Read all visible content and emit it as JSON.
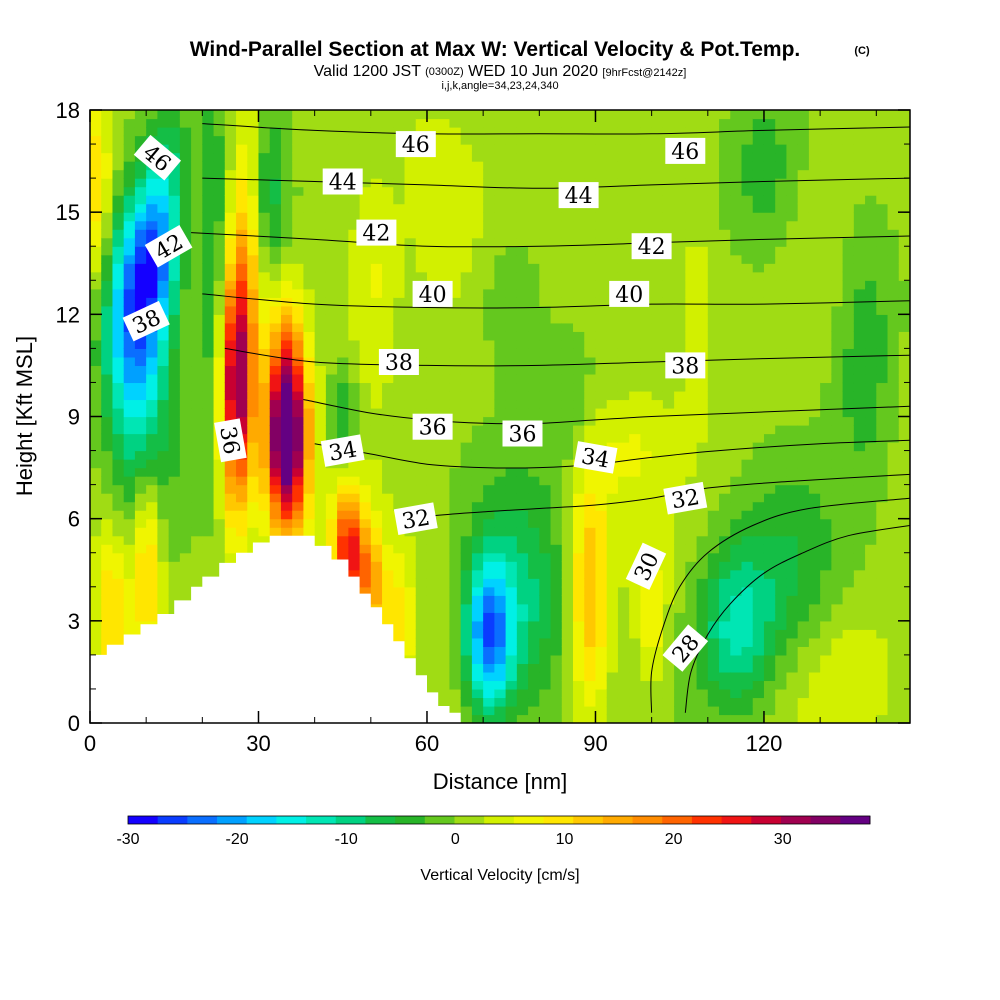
{
  "title": {
    "main": "Wind-Parallel Section at Max W: Vertical Velocity & Pot.Temp.",
    "copyright": "(C)",
    "valid_prefix": "Valid 1200 JST",
    "valid_zulu": "(0300Z)",
    "valid_date": "WED 10 Jun 2020",
    "forecast": "[9hrFcst@2142z]",
    "indices": "i,j,k,angle=34,23,24,340"
  },
  "chart_data": {
    "type": "heatmap",
    "xlabel": "Distance [nm]",
    "ylabel": "Height [Kft MSL]",
    "xlim": [
      0,
      146
    ],
    "ylim": [
      0,
      18
    ],
    "x_ticks": [
      0,
      30,
      60,
      90,
      120
    ],
    "y_ticks": [
      0,
      3,
      6,
      9,
      12,
      15,
      18
    ],
    "x_minor_step": 10,
    "y_minor_step": 1,
    "grid": false,
    "colorbar": {
      "label": "Vertical Velocity [cm/s]",
      "min": -30,
      "max": 38,
      "ticks": [
        -30,
        -20,
        -10,
        0,
        10,
        20,
        30
      ],
      "colors": [
        "#1400ff",
        "#0a3cff",
        "#0a6eff",
        "#00a0ff",
        "#00d2ff",
        "#00f0e6",
        "#00e6b4",
        "#00d282",
        "#14be46",
        "#28b428",
        "#64c81e",
        "#a0dc14",
        "#d2f000",
        "#f0f500",
        "#ffe600",
        "#ffc800",
        "#ffaa00",
        "#ff8c00",
        "#ff6400",
        "#ff3200",
        "#f01414",
        "#c80032",
        "#a00050",
        "#820064",
        "#640082"
      ]
    },
    "terrain_outline": [
      [
        0,
        0
      ],
      [
        0,
        2
      ],
      [
        3,
        2
      ],
      [
        3,
        2.3
      ],
      [
        6,
        2.3
      ],
      [
        6,
        2.6
      ],
      [
        9,
        2.6
      ],
      [
        9,
        2.9
      ],
      [
        12,
        2.9
      ],
      [
        12,
        3.2
      ],
      [
        15,
        3.2
      ],
      [
        15,
        3.6
      ],
      [
        18,
        3.6
      ],
      [
        18,
        4.0
      ],
      [
        20,
        4.0
      ],
      [
        20,
        4.3
      ],
      [
        23,
        4.3
      ],
      [
        23,
        4.7
      ],
      [
        26,
        4.7
      ],
      [
        26,
        5.0
      ],
      [
        29,
        5.0
      ],
      [
        29,
        5.3
      ],
      [
        32,
        5.3
      ],
      [
        32,
        5.5
      ],
      [
        40,
        5.5
      ],
      [
        40,
        5.2
      ],
      [
        43,
        5.2
      ],
      [
        43,
        4.8
      ],
      [
        46,
        4.8
      ],
      [
        46,
        4.3
      ],
      [
        48,
        4.3
      ],
      [
        48,
        3.8
      ],
      [
        50,
        3.8
      ],
      [
        50,
        3.4
      ],
      [
        52,
        3.4
      ],
      [
        52,
        2.9
      ],
      [
        54,
        2.9
      ],
      [
        54,
        2.4
      ],
      [
        56,
        2.4
      ],
      [
        56,
        1.9
      ],
      [
        58,
        1.9
      ],
      [
        58,
        1.4
      ],
      [
        60,
        1.4
      ],
      [
        60,
        0.9
      ],
      [
        62,
        0.9
      ],
      [
        62,
        0.5
      ],
      [
        64,
        0.5
      ],
      [
        64,
        0.3
      ],
      [
        66,
        0.3
      ],
      [
        66,
        0
      ]
    ],
    "wind_features": [
      {
        "x": 8,
        "y": 12.0,
        "sx": 4,
        "sy": 2.2,
        "w": -25
      },
      {
        "x": 12,
        "y": 14.0,
        "sx": 3,
        "sy": 1.5,
        "w": -18
      },
      {
        "x": 14,
        "y": 16.5,
        "sx": 3,
        "sy": 1.2,
        "w": -8
      },
      {
        "x": 9,
        "y": 7.5,
        "sx": 4,
        "sy": 2.5,
        "w": -8
      },
      {
        "x": 26,
        "y": 9.8,
        "sx": 2.0,
        "sy": 2.5,
        "w": 30
      },
      {
        "x": 35,
        "y": 8.2,
        "sx": 2.5,
        "sy": 1.8,
        "w": 36
      },
      {
        "x": 35,
        "y": 10.5,
        "sx": 2.5,
        "sy": 2.0,
        "w": 12
      },
      {
        "x": 28,
        "y": 13.5,
        "sx": 2.0,
        "sy": 3.0,
        "w": 10
      },
      {
        "x": 22,
        "y": 13.5,
        "sx": 2.0,
        "sy": 4.0,
        "w": -8
      },
      {
        "x": 32,
        "y": 15.5,
        "sx": 2.5,
        "sy": 2.0,
        "w": -8
      },
      {
        "x": 10,
        "y": 5.0,
        "sx": 2.0,
        "sy": 2.0,
        "w": 14
      },
      {
        "x": 4,
        "y": 3.5,
        "sx": 2.0,
        "sy": 2.0,
        "w": 10
      },
      {
        "x": 46,
        "y": 5.0,
        "sx": 2.0,
        "sy": 1.2,
        "w": 24
      },
      {
        "x": 50,
        "y": 4.0,
        "sx": 1.8,
        "sy": 1.2,
        "w": 14
      },
      {
        "x": 55,
        "y": 3.0,
        "sx": 2.0,
        "sy": 1.5,
        "w": 8
      },
      {
        "x": 71,
        "y": 2.5,
        "sx": 3.0,
        "sy": 1.6,
        "w": -22
      },
      {
        "x": 77,
        "y": 3.5,
        "sx": 6.0,
        "sy": 2.5,
        "w": -10
      },
      {
        "x": 89,
        "y": 3.8,
        "sx": 2.5,
        "sy": 2.5,
        "w": 13
      },
      {
        "x": 100,
        "y": 3.0,
        "sx": 2.0,
        "sy": 1.5,
        "w": 6
      },
      {
        "x": 115,
        "y": 2.8,
        "sx": 5.0,
        "sy": 1.8,
        "w": -13
      },
      {
        "x": 125,
        "y": 4.5,
        "sx": 6.0,
        "sy": 2.0,
        "w": -6
      },
      {
        "x": 75,
        "y": 12.5,
        "sx": 4.0,
        "sy": 1.5,
        "w": -5
      },
      {
        "x": 120,
        "y": 16.0,
        "sx": 5.0,
        "sy": 2.0,
        "w": -6
      },
      {
        "x": 138,
        "y": 11.0,
        "sx": 4.0,
        "sy": 3.0,
        "w": -6
      },
      {
        "x": 108,
        "y": 12.0,
        "sx": 2.0,
        "sy": 2.0,
        "w": 4
      },
      {
        "x": 50,
        "y": 13.0,
        "sx": 3.0,
        "sy": 2.0,
        "w": 5
      },
      {
        "x": 1,
        "y": 15.5,
        "sx": 2.0,
        "sy": 2.0,
        "w": 10
      },
      {
        "x": 62,
        "y": 16.0,
        "sx": 5.0,
        "sy": 2.0,
        "w": 2
      },
      {
        "x": 45,
        "y": 9.0,
        "sx": 2.0,
        "sy": 1.0,
        "w": -8
      },
      {
        "x": 96,
        "y": 8.0,
        "sx": 5.0,
        "sy": 1.0,
        "w": 3
      },
      {
        "x": 135,
        "y": 1.5,
        "sx": 6.0,
        "sy": 1.2,
        "w": 3
      },
      {
        "x": 85,
        "y": 9.5,
        "sx": 4.0,
        "sy": 1.5,
        "w": -4
      }
    ],
    "theta_contours": [
      {
        "level": 28,
        "points": [
          [
            106,
            0.3
          ],
          [
            107,
            1.5
          ],
          [
            110,
            2.6
          ],
          [
            114,
            3.5
          ],
          [
            120,
            4.4
          ],
          [
            127,
            5.0
          ],
          [
            135,
            5.5
          ],
          [
            146,
            5.8
          ]
        ]
      },
      {
        "level": 30,
        "points": [
          [
            100,
            0.3
          ],
          [
            100,
            1.5
          ],
          [
            102,
            2.8
          ],
          [
            105,
            4.0
          ],
          [
            110,
            5.0
          ],
          [
            118,
            5.8
          ],
          [
            128,
            6.3
          ],
          [
            146,
            6.6
          ]
        ]
      },
      {
        "level": 32,
        "points": [
          [
            56,
            6.0
          ],
          [
            62,
            6.1
          ],
          [
            70,
            6.2
          ],
          [
            80,
            6.3
          ],
          [
            90,
            6.4
          ],
          [
            100,
            6.6
          ],
          [
            110,
            6.9
          ],
          [
            125,
            7.1
          ],
          [
            146,
            7.3
          ]
        ]
      },
      {
        "level": 34,
        "points": [
          [
            40,
            8.2
          ],
          [
            50,
            7.9
          ],
          [
            60,
            7.6
          ],
          [
            70,
            7.5
          ],
          [
            80,
            7.5
          ],
          [
            90,
            7.6
          ],
          [
            100,
            7.8
          ],
          [
            112,
            8.0
          ],
          [
            130,
            8.2
          ],
          [
            146,
            8.3
          ]
        ]
      },
      {
        "level": 36,
        "points": [
          [
            38,
            9.5
          ],
          [
            50,
            9.1
          ],
          [
            60,
            8.9
          ],
          [
            70,
            8.8
          ],
          [
            80,
            8.8
          ],
          [
            90,
            8.9
          ],
          [
            100,
            9.0
          ],
          [
            115,
            9.1
          ],
          [
            130,
            9.2
          ],
          [
            146,
            9.3
          ]
        ]
      },
      {
        "level": 38,
        "points": [
          [
            24,
            11.0
          ],
          [
            40,
            10.6
          ],
          [
            60,
            10.5
          ],
          [
            80,
            10.5
          ],
          [
            100,
            10.6
          ],
          [
            120,
            10.7
          ],
          [
            146,
            10.8
          ]
        ]
      },
      {
        "level": 40,
        "points": [
          [
            20,
            12.6
          ],
          [
            40,
            12.3
          ],
          [
            60,
            12.2
          ],
          [
            80,
            12.2
          ],
          [
            100,
            12.3
          ],
          [
            120,
            12.3
          ],
          [
            146,
            12.4
          ]
        ]
      },
      {
        "level": 42,
        "points": [
          [
            18,
            14.4
          ],
          [
            40,
            14.2
          ],
          [
            60,
            14.0
          ],
          [
            80,
            14.0
          ],
          [
            100,
            14.1
          ],
          [
            120,
            14.2
          ],
          [
            146,
            14.3
          ]
        ]
      },
      {
        "level": 44,
        "points": [
          [
            20,
            16.0
          ],
          [
            40,
            15.9
          ],
          [
            60,
            15.8
          ],
          [
            80,
            15.7
          ],
          [
            100,
            15.8
          ],
          [
            120,
            15.9
          ],
          [
            146,
            16.0
          ]
        ]
      },
      {
        "level": 46,
        "points": [
          [
            20,
            17.6
          ],
          [
            40,
            17.4
          ],
          [
            60,
            17.3
          ],
          [
            80,
            17.3
          ],
          [
            100,
            17.3
          ],
          [
            120,
            17.4
          ],
          [
            146,
            17.5
          ]
        ]
      }
    ],
    "contour_labels": [
      {
        "text": "46",
        "x": 12,
        "y": 16.6,
        "angle": 40
      },
      {
        "text": "46",
        "x": 58,
        "y": 17.0,
        "angle": 0
      },
      {
        "text": "46",
        "x": 106,
        "y": 16.8,
        "angle": 0
      },
      {
        "text": "44",
        "x": 45,
        "y": 15.9,
        "angle": 0
      },
      {
        "text": "44",
        "x": 87,
        "y": 15.5,
        "angle": 0
      },
      {
        "text": "42",
        "x": 14,
        "y": 14.0,
        "angle": -30
      },
      {
        "text": "42",
        "x": 51,
        "y": 14.4,
        "angle": 0
      },
      {
        "text": "42",
        "x": 100,
        "y": 14.0,
        "angle": 0
      },
      {
        "text": "40",
        "x": 61,
        "y": 12.6,
        "angle": 0
      },
      {
        "text": "40",
        "x": 96,
        "y": 12.6,
        "angle": 0
      },
      {
        "text": "38",
        "x": 10,
        "y": 11.8,
        "angle": -25
      },
      {
        "text": "38",
        "x": 55,
        "y": 10.6,
        "angle": 0
      },
      {
        "text": "38",
        "x": 106,
        "y": 10.5,
        "angle": 0
      },
      {
        "text": "36",
        "x": 25,
        "y": 8.3,
        "angle": 80
      },
      {
        "text": "36",
        "x": 61,
        "y": 8.7,
        "angle": 0
      },
      {
        "text": "36",
        "x": 77,
        "y": 8.5,
        "angle": 0
      },
      {
        "text": "34",
        "x": 45,
        "y": 8.0,
        "angle": -10
      },
      {
        "text": "34",
        "x": 90,
        "y": 7.8,
        "angle": 10
      },
      {
        "text": "32",
        "x": 58,
        "y": 6.0,
        "angle": -10
      },
      {
        "text": "32",
        "x": 106,
        "y": 6.6,
        "angle": -10
      },
      {
        "text": "30",
        "x": 99,
        "y": 4.6,
        "angle": -65
      },
      {
        "text": "28",
        "x": 106,
        "y": 2.2,
        "angle": -50
      }
    ]
  }
}
